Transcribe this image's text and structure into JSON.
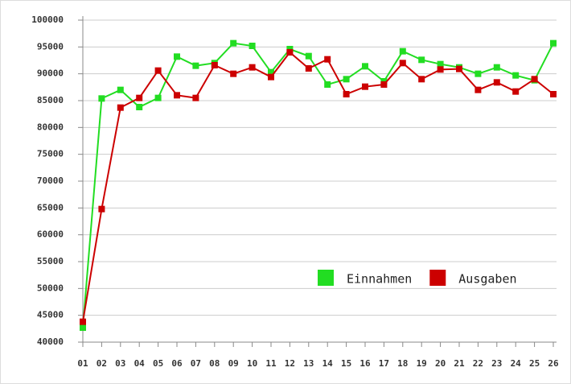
{
  "chart_data": {
    "type": "line",
    "categories": [
      "01",
      "02",
      "03",
      "04",
      "05",
      "06",
      "07",
      "08",
      "09",
      "10",
      "11",
      "12",
      "13",
      "14",
      "15",
      "16",
      "17",
      "18",
      "19",
      "20",
      "21",
      "22",
      "23",
      "24",
      "25",
      "26"
    ],
    "series": [
      {
        "name": "Einnahmen",
        "color": "#22dd22",
        "values": [
          42700,
          85400,
          87000,
          83800,
          85500,
          93200,
          91500,
          92000,
          95700,
          95200,
          90300,
          94600,
          93300,
          88000,
          89000,
          91400,
          88600,
          94200,
          92600,
          91800,
          91200,
          90000,
          91200,
          89700,
          88800,
          95700
        ]
      },
      {
        "name": "Ausgaben",
        "color": "#cc0000",
        "values": [
          43800,
          64800,
          83700,
          85500,
          90600,
          86000,
          85500,
          91600,
          90000,
          91200,
          89400,
          94000,
          91000,
          92700,
          86200,
          87600,
          88000,
          92000,
          89000,
          90800,
          90900,
          87000,
          88400,
          86700,
          89000,
          86200
        ]
      }
    ],
    "ylim": [
      40000,
      100000
    ],
    "yticks": [
      40000,
      45000,
      50000,
      55000,
      60000,
      65000,
      70000,
      75000,
      80000,
      85000,
      90000,
      95000,
      100000
    ],
    "grid": true,
    "legend": "lower right"
  }
}
